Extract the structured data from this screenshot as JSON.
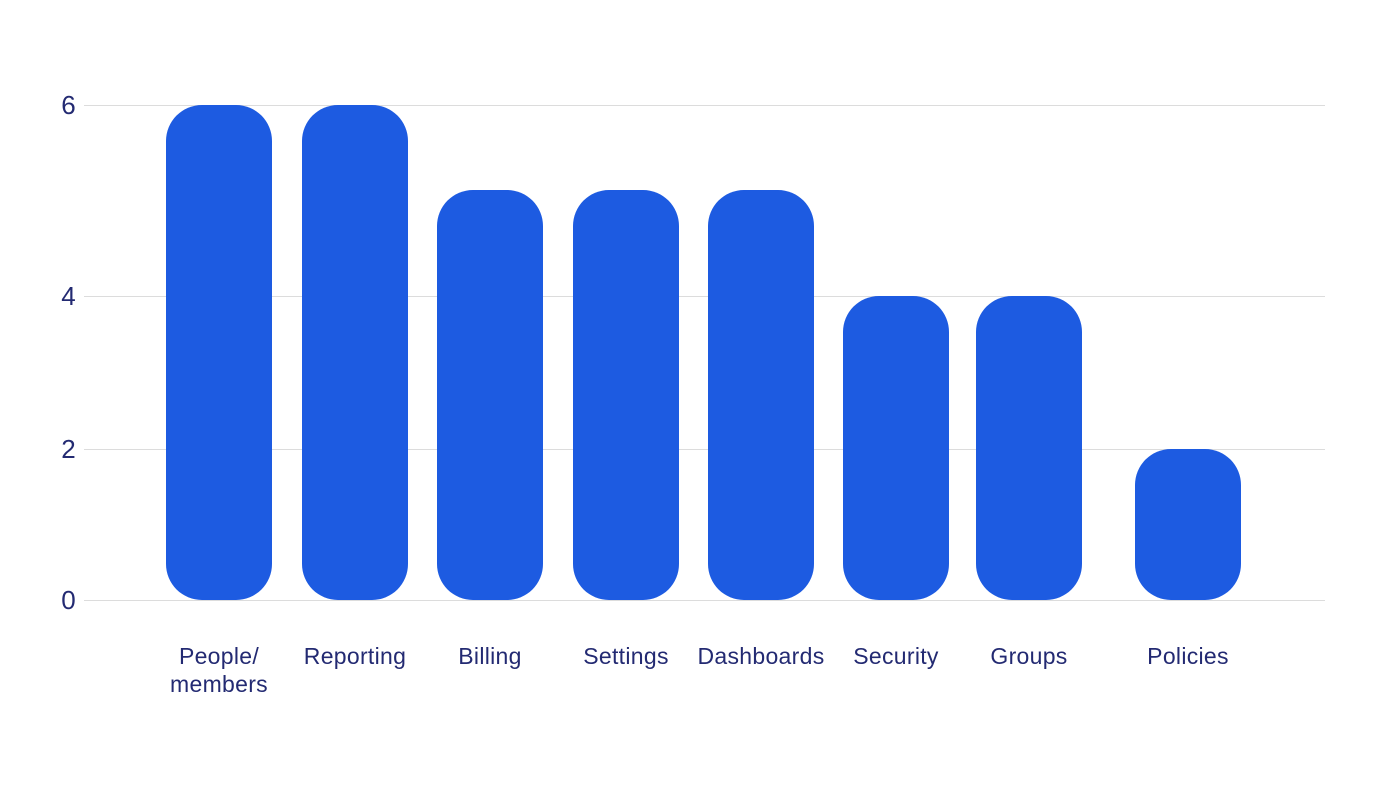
{
  "chart_data": {
    "type": "bar",
    "categories": [
      "People/\nmembers",
      "Reporting",
      "Billing",
      "Settings",
      "Dashboards",
      "Security",
      "Groups",
      "Policies"
    ],
    "values": [
      6,
      6,
      5,
      5,
      5,
      4,
      4,
      2
    ],
    "title": "",
    "xlabel": "",
    "ylabel": "",
    "ylim": [
      0,
      6
    ],
    "yticks": [
      0,
      2,
      4,
      6
    ],
    "grid": true,
    "legend": false,
    "bar_color": "#1d5be1",
    "text_color": "#232a72",
    "gridline_color": "#dcdcdc",
    "background_color": "#ffffff"
  }
}
